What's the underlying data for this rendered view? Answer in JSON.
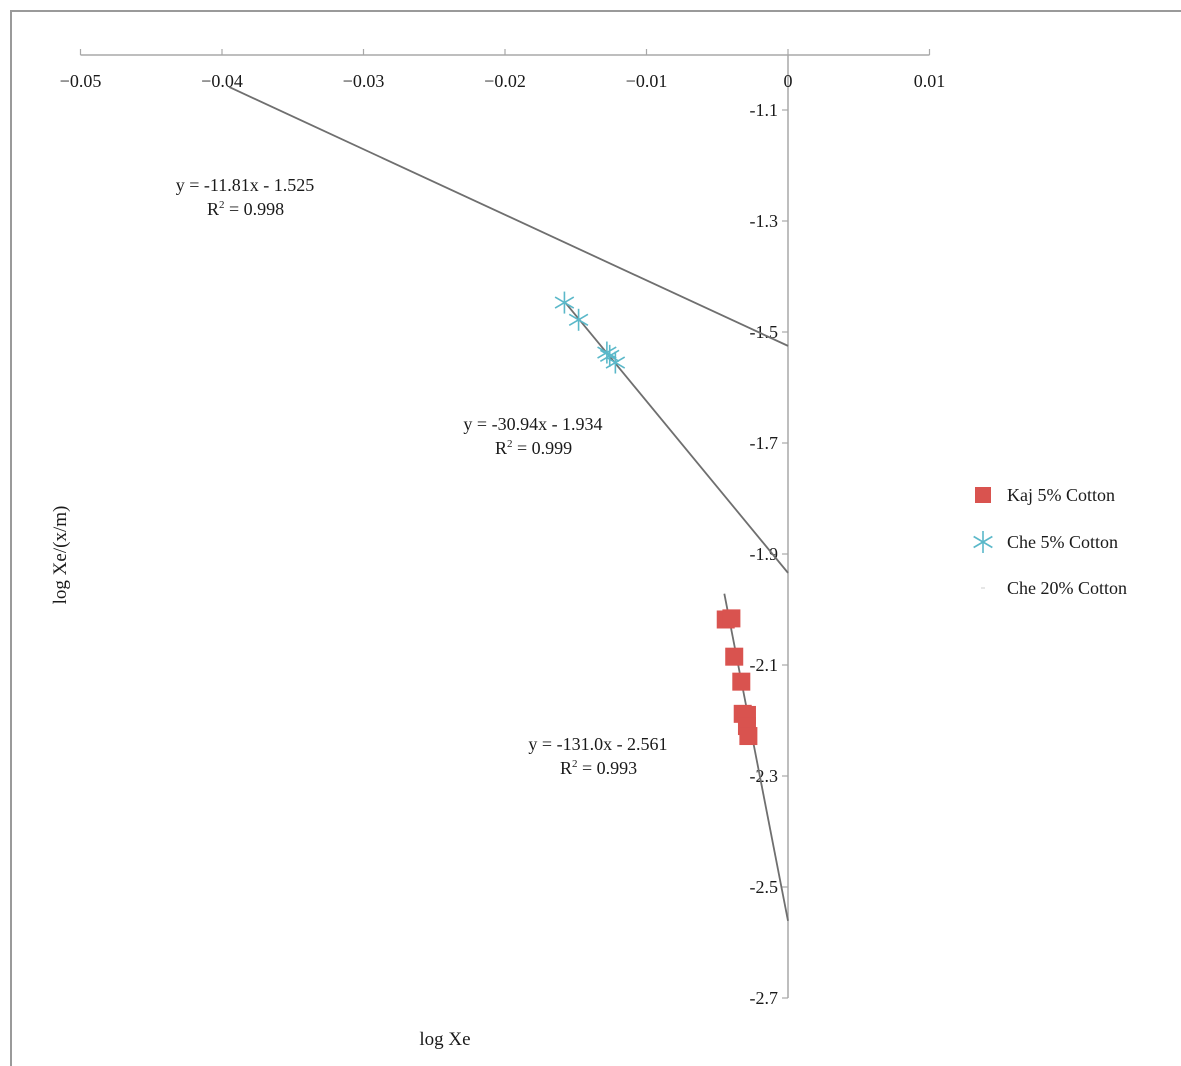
{
  "chart_data": {
    "type": "scatter",
    "title": "",
    "xlabel": "log Xe",
    "ylabel": "log Xe/(x/m)",
    "xlim": [
      -0.05,
      0.01
    ],
    "ylim": [
      -2.7,
      -1.0
    ],
    "x_ticks": [
      "-0.05",
      "-0.04",
      "-0.03",
      "-0.02",
      "-0.01",
      "0",
      "0.01"
    ],
    "y_ticks": [
      "-1.1",
      "-1.3",
      "-1.5",
      "-1.7",
      "-1.9",
      "-2.1",
      "-2.3",
      "-2.5",
      "-2.7"
    ],
    "grid": false,
    "legend_position": "right",
    "series": [
      {
        "name": "Kaj 5% Cotton",
        "marker": "square",
        "color": "#d9534f",
        "points": [
          [
            -0.0044,
            -2.018
          ],
          [
            -0.004,
            -2.016
          ],
          [
            -0.0038,
            -2.085
          ],
          [
            -0.0033,
            -2.13
          ],
          [
            -0.0032,
            -2.188
          ],
          [
            -0.0029,
            -2.19
          ],
          [
            -0.0029,
            -2.21
          ],
          [
            -0.0028,
            -2.228
          ]
        ],
        "trendline": {
          "slope": -131.0,
          "intercept": -2.561,
          "x_from": -0.0045,
          "x_to": 0
        },
        "equation": "y = -131.0x - 2.561",
        "r2_value": "= 0.993"
      },
      {
        "name": "Che 5% Cotton",
        "marker": "asterisk",
        "color": "#5ab8c9",
        "points": [
          [
            -0.0158,
            -1.447
          ],
          [
            -0.0148,
            -1.478
          ],
          [
            -0.0128,
            -1.537
          ],
          [
            -0.0126,
            -1.543
          ],
          [
            -0.0122,
            -1.555
          ]
        ],
        "trendline": {
          "slope": -30.94,
          "intercept": -1.934,
          "x_from": -0.0158,
          "x_to": 0
        },
        "equation": "y = -30.94x - 1.934",
        "r2_value": "= 0.999"
      },
      {
        "name": "Che 20% Cotton",
        "marker": "none",
        "color": "#cccccc",
        "points": [],
        "trendline": {
          "slope": -11.81,
          "intercept": -1.525,
          "x_from": -0.0395,
          "x_to": 0
        },
        "equation": "y = -11.81x - 1.525",
        "r2_value": "= 0.998"
      }
    ]
  }
}
